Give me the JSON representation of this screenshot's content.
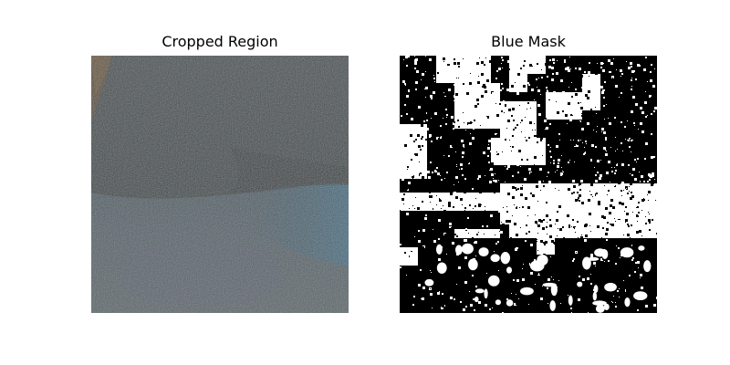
{
  "panels": {
    "left": {
      "title": "Cropped Region"
    },
    "right": {
      "title": "Blue Mask"
    }
  },
  "colors": {
    "background": "#ffffff",
    "mask_on": "#ffffff",
    "mask_off": "#000000",
    "photo_dark": "#3c4548",
    "photo_light": "#5a6870",
    "photo_teal": "#3e6a7c",
    "photo_brown": "#5a4a34"
  },
  "icons": {
    "left": "photo-crop-image",
    "right": "binary-mask-image"
  }
}
